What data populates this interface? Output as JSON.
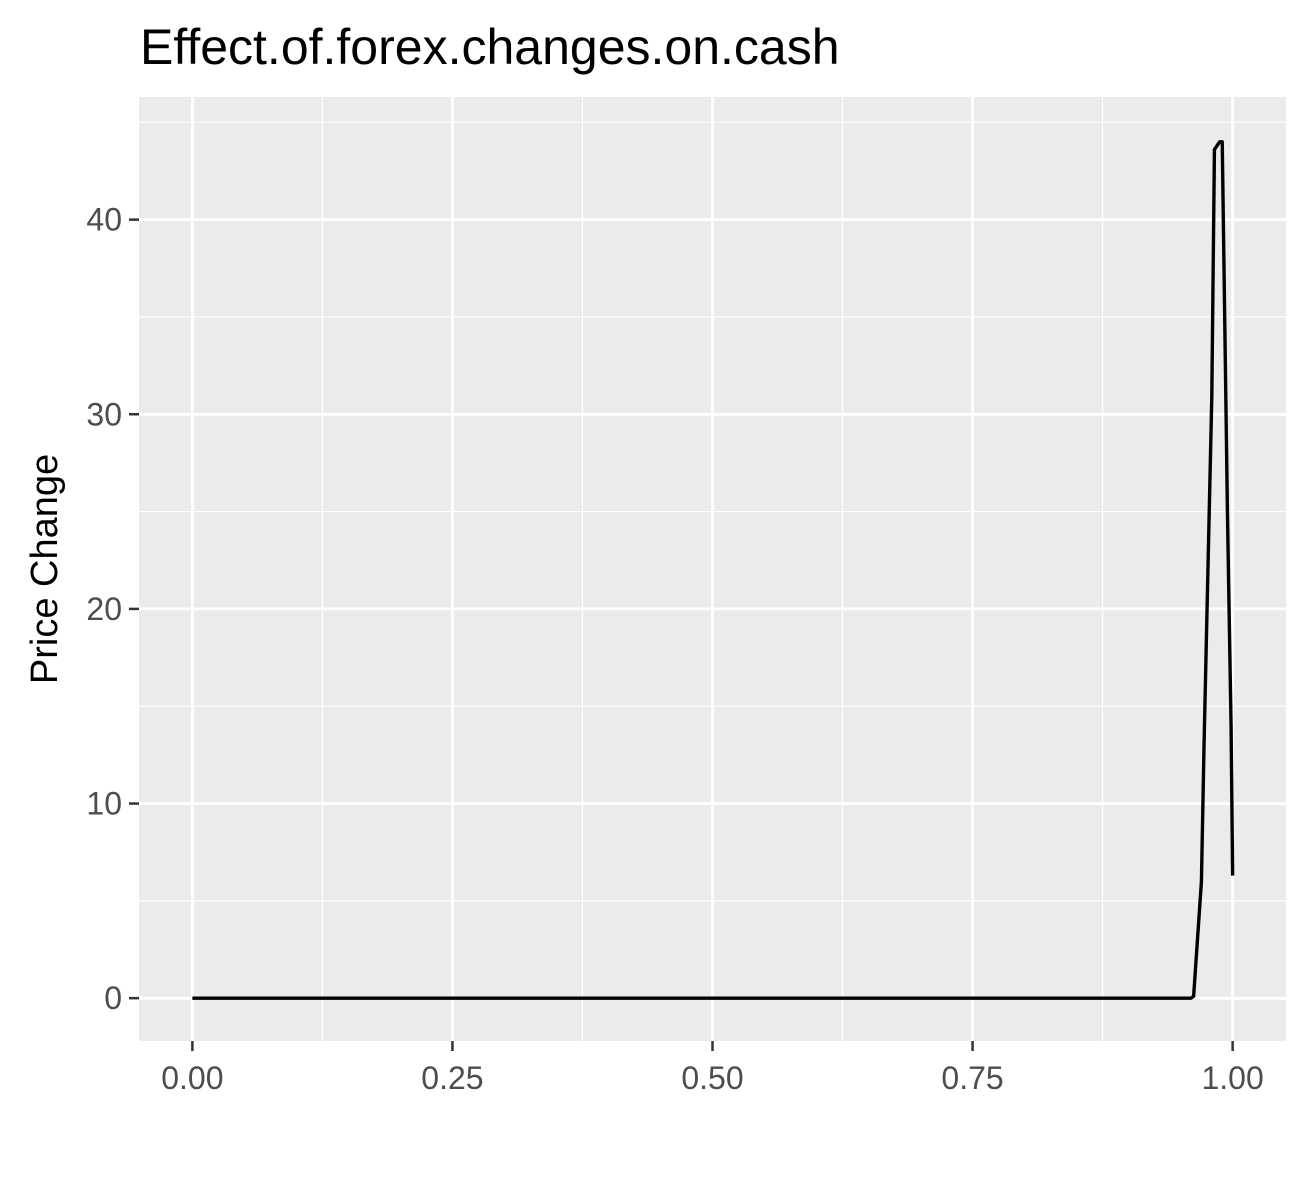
{
  "chart_data": {
    "type": "line",
    "title": "Effect.of.forex.changes.on.cash",
    "xlabel": "",
    "ylabel": "Price Change",
    "xlim": [
      -0.0513,
      1.0513
    ],
    "ylim": [
      -2.2,
      46.3
    ],
    "x_ticks": [
      0,
      0.25,
      0.5,
      0.75,
      1
    ],
    "x_tick_labels": [
      "0.00",
      "0.25",
      "0.50",
      "0.75",
      "1.00"
    ],
    "y_ticks": [
      0,
      10,
      20,
      30,
      40
    ],
    "y_tick_labels": [
      "0",
      "10",
      "20",
      "30",
      "40"
    ],
    "grid": true,
    "panel_background": "#ebebeb",
    "grid_color": "#ffffff",
    "line_color": "#000000",
    "series": [
      {
        "x": [
          0,
          0.96,
          0.9625,
          0.97,
          0.9725,
          0.98,
          0.9825,
          0.9875,
          0.99,
          0.995,
          0.9985,
          1.0
        ],
        "values": [
          0,
          0,
          0.1,
          6.0,
          13.0,
          31.0,
          43.6,
          44.0,
          44.0,
          25.0,
          14.0,
          6.3
        ]
      }
    ]
  }
}
